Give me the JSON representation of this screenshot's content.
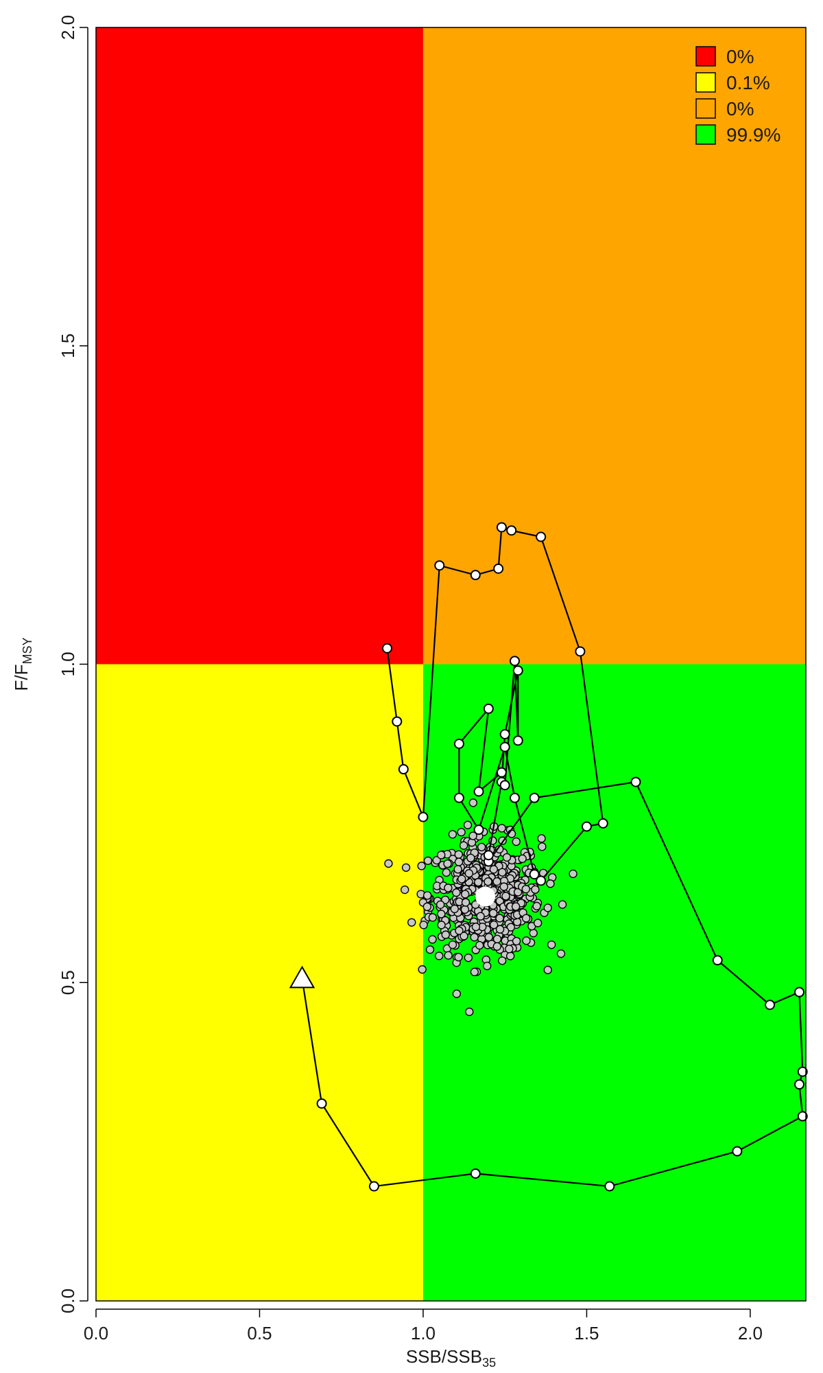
{
  "chart_data": {
    "type": "scatter",
    "title": "",
    "xlabel": {
      "main": "SSB/SSB",
      "sub": "35"
    },
    "ylabel": {
      "main": "F/F",
      "sub": "MSY"
    },
    "xlim": [
      0,
      2.17
    ],
    "ylim": [
      0,
      2.0
    ],
    "xticks": [
      0.0,
      0.5,
      1.0,
      1.5,
      2.0
    ],
    "xtick_labels": [
      "0.0",
      "0.5",
      "1.0",
      "1.5",
      "2.0"
    ],
    "yticks": [
      0.0,
      0.5,
      1.0,
      1.5,
      2.0
    ],
    "ytick_labels": [
      "0.0",
      "0.5",
      "1.0",
      "1.5",
      "2.0"
    ],
    "grid": false,
    "quadrants": [
      {
        "name": "overfished-and-overfishing",
        "x": [
          0,
          1
        ],
        "y": [
          1,
          2
        ],
        "color": "#ff0000"
      },
      {
        "name": "not-overfished-overfishing",
        "x": [
          1,
          2.17
        ],
        "y": [
          1,
          2
        ],
        "color": "#ffa500"
      },
      {
        "name": "overfished-not-overfishing",
        "x": [
          0,
          1
        ],
        "y": [
          0,
          1
        ],
        "color": "#ffff00"
      },
      {
        "name": "healthy",
        "x": [
          1,
          2.17
        ],
        "y": [
          0,
          1
        ],
        "color": "#00ff00"
      }
    ],
    "legend": {
      "position": "top-right",
      "entries": [
        {
          "label": "0%",
          "color": "#ff0000"
        },
        {
          "label": "0.1%",
          "color": "#ffff00"
        },
        {
          "label": "0%",
          "color": "#ffa500"
        },
        {
          "label": "99.9%",
          "color": "#00ff00"
        }
      ]
    },
    "trajectory": {
      "start_marker": "triangle",
      "points": [
        [
          0.63,
          0.506
        ],
        [
          0.69,
          0.31
        ],
        [
          0.85,
          0.18
        ],
        [
          1.16,
          0.2
        ],
        [
          1.57,
          0.18
        ],
        [
          1.96,
          0.235
        ],
        [
          2.16,
          0.29
        ],
        [
          2.15,
          0.34
        ],
        [
          2.16,
          0.36
        ],
        [
          2.15,
          0.485
        ],
        [
          2.06,
          0.465
        ],
        [
          1.9,
          0.535
        ],
        [
          1.65,
          0.815
        ],
        [
          1.34,
          0.79
        ],
        [
          1.2,
          0.69
        ],
        [
          1.2,
          0.7
        ],
        [
          1.24,
          0.815
        ],
        [
          1.25,
          0.89
        ],
        [
          1.29,
          0.99
        ],
        [
          1.29,
          0.88
        ],
        [
          1.28,
          1.005
        ],
        [
          1.25,
          0.81
        ],
        [
          1.24,
          0.83
        ],
        [
          1.17,
          0.8
        ],
        [
          1.2,
          0.93
        ],
        [
          1.11,
          0.875
        ],
        [
          1.11,
          0.79
        ],
        [
          1.17,
          0.74
        ],
        [
          1.25,
          0.87
        ],
        [
          1.28,
          0.79
        ],
        [
          1.34,
          0.67
        ],
        [
          1.36,
          0.66
        ],
        [
          1.5,
          0.745
        ],
        [
          1.55,
          0.75
        ],
        [
          1.48,
          1.02
        ],
        [
          1.36,
          1.2
        ],
        [
          1.27,
          1.21
        ],
        [
          1.24,
          1.215
        ],
        [
          1.23,
          1.15
        ],
        [
          1.16,
          1.14
        ],
        [
          1.05,
          1.155
        ],
        [
          1.0,
          0.76
        ],
        [
          0.94,
          0.835
        ],
        [
          0.92,
          0.91
        ],
        [
          0.89,
          1.025
        ]
      ]
    },
    "projection_cloud": {
      "count": 600,
      "center": [
        1.19,
        0.635
      ],
      "sd": [
        0.085,
        0.045
      ],
      "color": "#c8c8c8"
    },
    "current_point": {
      "x": 1.19,
      "y": 0.635,
      "color": "#ffffff"
    }
  }
}
